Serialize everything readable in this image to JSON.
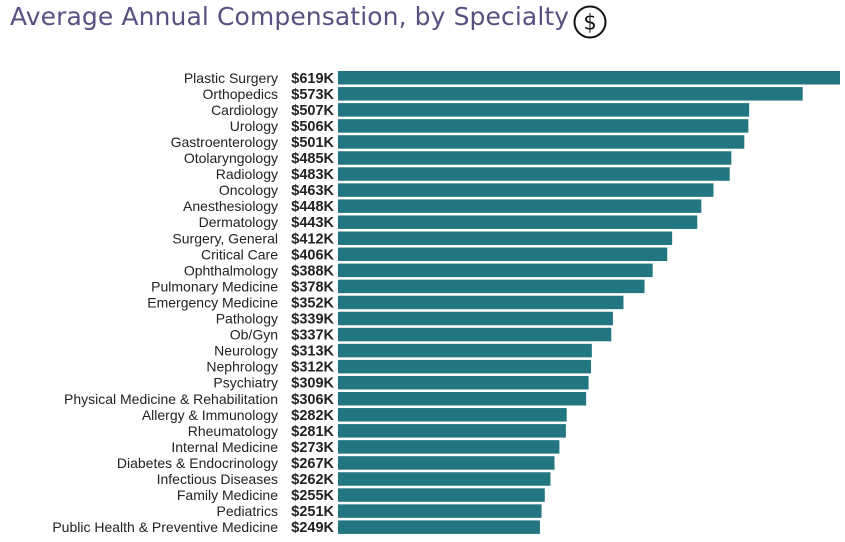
{
  "title": "Average Annual Compensation, by Specialty",
  "icon": "dollar-circle-icon",
  "colors": {
    "bar": "#227681",
    "title": "#5a4f82",
    "text": "#222222"
  },
  "chart_data": {
    "type": "bar",
    "orientation": "horizontal",
    "title": "Average Annual Compensation, by Specialty",
    "xlabel": "",
    "ylabel": "",
    "unit": "$K",
    "grid": false,
    "categories": [
      "Plastic Surgery",
      "Orthopedics",
      "Cardiology",
      "Urology",
      "Gastroenterology",
      "Otolaryngology",
      "Radiology",
      "Oncology",
      "Anesthesiology",
      "Dermatology",
      "Surgery, General",
      "Critical Care",
      "Ophthalmology",
      "Pulmonary Medicine",
      "Emergency Medicine",
      "Pathology",
      "Ob/Gyn",
      "Neurology",
      "Nephrology",
      "Psychiatry",
      "Physical Medicine & Rehabilitation",
      "Allergy & Immunology",
      "Rheumatology",
      "Internal Medicine",
      "Diabetes & Endocrinology",
      "Infectious Diseases",
      "Family Medicine",
      "Pediatrics",
      "Public Health & Preventive Medicine"
    ],
    "values": [
      619,
      573,
      507,
      506,
      501,
      485,
      483,
      463,
      448,
      443,
      412,
      406,
      388,
      378,
      352,
      339,
      337,
      313,
      312,
      309,
      306,
      282,
      281,
      273,
      267,
      262,
      255,
      251,
      249
    ],
    "value_labels": [
      "$619K",
      "$573K",
      "$507K",
      "$506K",
      "$501K",
      "$485K",
      "$483K",
      "$463K",
      "$448K",
      "$443K",
      "$412K",
      "$406K",
      "$388K",
      "$378K",
      "$352K",
      "$339K",
      "$337K",
      "$313K",
      "$312K",
      "$309K",
      "$306K",
      "$282K",
      "$281K",
      "$273K",
      "$267K",
      "$262K",
      "$255K",
      "$251K",
      "$249K"
    ]
  }
}
